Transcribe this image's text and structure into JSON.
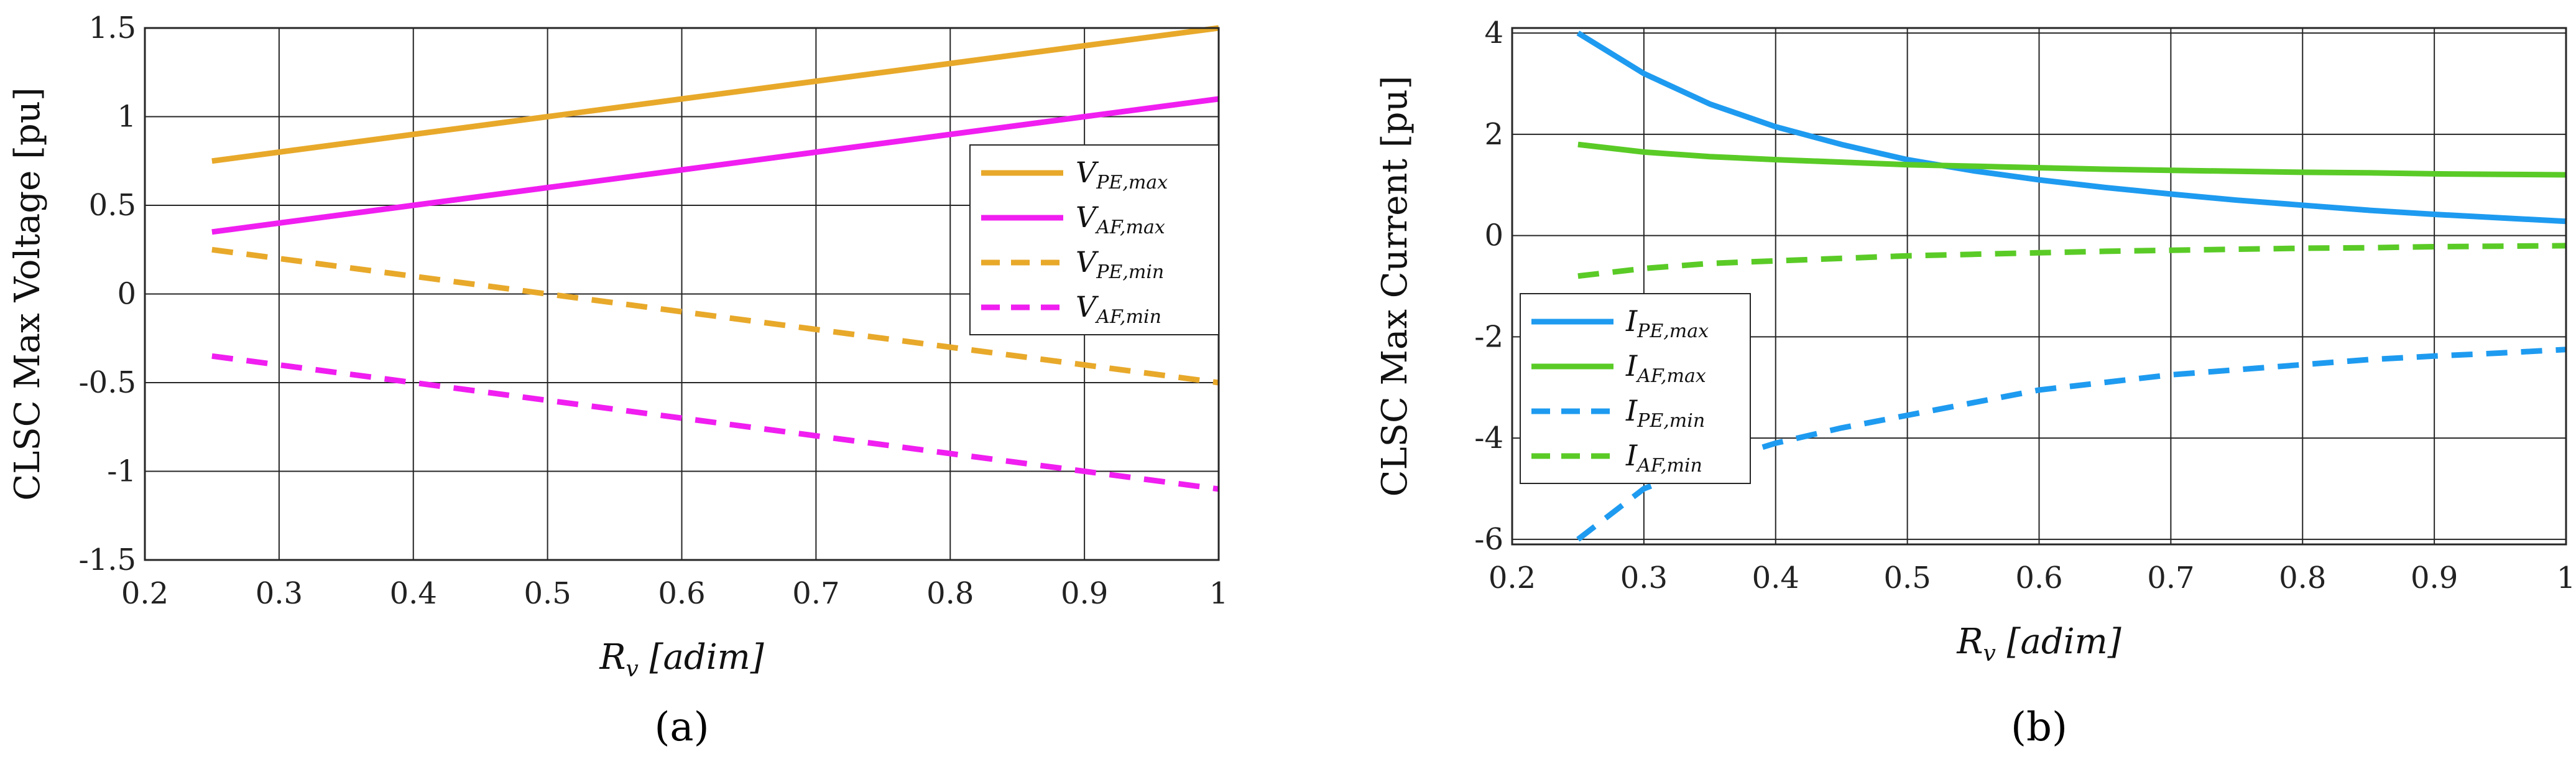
{
  "chart_data": [
    {
      "type": "line",
      "panel_label": "(a)",
      "xlabel_main": "R",
      "xlabel_sub": "v",
      "xlabel_unit": "[adim]",
      "ylabel": "CLSC Max Voltage [pu]",
      "xlim": [
        0.2,
        1.0
      ],
      "ylim": [
        -1.5,
        1.5
      ],
      "xticks": [
        0.2,
        0.3,
        0.4,
        0.5,
        0.6,
        0.7,
        0.8,
        0.9,
        1.0
      ],
      "yticks": [
        -1.5,
        -1,
        -0.5,
        0,
        0.5,
        1,
        1.5
      ],
      "xtick_labels": [
        "0.2",
        "0.3",
        "0.4",
        "0.5",
        "0.6",
        "0.7",
        "0.8",
        "0.9",
        "1"
      ],
      "ytick_labels": [
        "-1.5",
        "-1",
        "-0.5",
        "0",
        "0.5",
        "1",
        "1.5"
      ],
      "grid": true,
      "legend_position": "right",
      "x": [
        0.25,
        0.3,
        0.4,
        0.5,
        0.6,
        0.7,
        0.8,
        0.9,
        1.0
      ],
      "series": [
        {
          "name": "V",
          "sub": "PE,max",
          "color": "#E8A92A",
          "dash": "solid",
          "values": [
            0.75,
            0.8,
            0.9,
            1.0,
            1.1,
            1.2,
            1.3,
            1.4,
            1.5
          ]
        },
        {
          "name": "V",
          "sub": "AF,max",
          "color": "#F01EF0",
          "dash": "solid",
          "values": [
            0.35,
            0.4,
            0.5,
            0.6,
            0.7,
            0.8,
            0.9,
            1.0,
            1.1
          ]
        },
        {
          "name": "V",
          "sub": "PE,min",
          "color": "#E8A92A",
          "dash": "dashed",
          "values": [
            0.25,
            0.2,
            0.1,
            0.0,
            -0.1,
            -0.2,
            -0.3,
            -0.4,
            -0.5
          ]
        },
        {
          "name": "V",
          "sub": "AF,min",
          "color": "#F01EF0",
          "dash": "dashed",
          "values": [
            -0.35,
            -0.4,
            -0.5,
            -0.6,
            -0.7,
            -0.8,
            -0.9,
            -1.0,
            -1.1
          ]
        }
      ]
    },
    {
      "type": "line",
      "panel_label": "(b)",
      "xlabel_main": "R",
      "xlabel_sub": "v",
      "xlabel_unit": "[adim]",
      "ylabel": "CLSC Max Current [pu]",
      "xlim": [
        0.2,
        1.0
      ],
      "ylim": [
        -6.1,
        4.1
      ],
      "xticks": [
        0.2,
        0.3,
        0.4,
        0.5,
        0.6,
        0.7,
        0.8,
        0.9,
        1.0
      ],
      "yticks": [
        -6,
        -4,
        -2,
        0,
        2,
        4
      ],
      "xtick_labels": [
        "0.2",
        "0.3",
        "0.4",
        "0.5",
        "0.6",
        "0.7",
        "0.8",
        "0.9",
        "1"
      ],
      "ytick_labels": [
        "-6",
        "-4",
        "-2",
        "0",
        "2",
        "4"
      ],
      "grid": true,
      "legend_position": "bottom-left",
      "x": [
        0.25,
        0.3,
        0.35,
        0.4,
        0.45,
        0.5,
        0.55,
        0.6,
        0.65,
        0.7,
        0.75,
        0.8,
        0.85,
        0.9,
        0.95,
        1.0
      ],
      "series": [
        {
          "name": "I",
          "sub": "PE,max",
          "color": "#1E9BF0",
          "dash": "solid",
          "values": [
            4.0,
            3.2,
            2.6,
            2.15,
            1.8,
            1.5,
            1.28,
            1.1,
            0.95,
            0.82,
            0.7,
            0.6,
            0.5,
            0.42,
            0.35,
            0.28
          ]
        },
        {
          "name": "I",
          "sub": "AF,max",
          "color": "#5ACB26",
          "dash": "solid",
          "values": [
            1.8,
            1.65,
            1.56,
            1.5,
            1.45,
            1.4,
            1.37,
            1.34,
            1.31,
            1.29,
            1.27,
            1.25,
            1.24,
            1.22,
            1.21,
            1.2
          ]
        },
        {
          "name": "I",
          "sub": "PE,min",
          "color": "#1E9BF0",
          "dash": "dashed",
          "values": [
            -6.0,
            -5.0,
            -4.5,
            -4.1,
            -3.8,
            -3.55,
            -3.3,
            -3.05,
            -2.9,
            -2.75,
            -2.65,
            -2.55,
            -2.45,
            -2.38,
            -2.32,
            -2.25
          ]
        },
        {
          "name": "I",
          "sub": "AF,min",
          "color": "#5ACB26",
          "dash": "dashed",
          "values": [
            -0.8,
            -0.65,
            -0.55,
            -0.5,
            -0.45,
            -0.4,
            -0.37,
            -0.34,
            -0.31,
            -0.29,
            -0.27,
            -0.25,
            -0.24,
            -0.22,
            -0.21,
            -0.2
          ]
        }
      ]
    }
  ]
}
